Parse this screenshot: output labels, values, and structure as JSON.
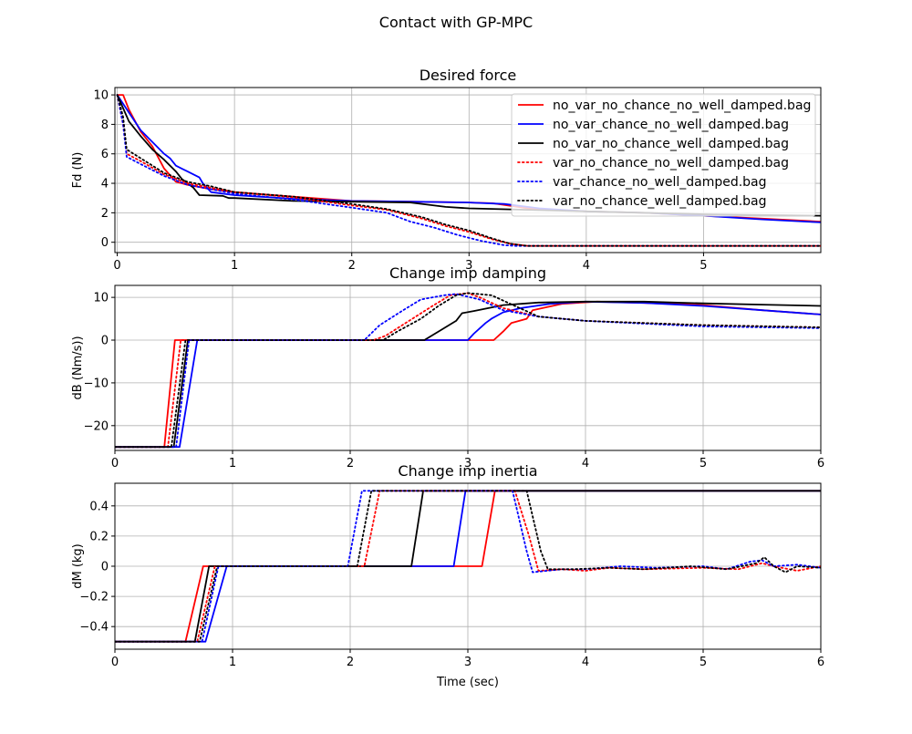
{
  "figure": {
    "suptitle": "Contact with GP-MPC",
    "xlabel": "Time (sec)"
  },
  "style": {
    "series_styles": [
      {
        "color": "#ff0000",
        "dash": "solid"
      },
      {
        "color": "#0000ff",
        "dash": "solid"
      },
      {
        "color": "#000000",
        "dash": "solid"
      },
      {
        "color": "#ff0000",
        "dash": "dotted"
      },
      {
        "color": "#0000ff",
        "dash": "dotted"
      },
      {
        "color": "#000000",
        "dash": "dotted"
      }
    ]
  },
  "chart_data": [
    {
      "type": "line",
      "title": "Desired force",
      "xlabel": "",
      "ylabel": "Fd (N)",
      "xlim": [
        -0.02,
        6.0
      ],
      "ylim": [
        -0.7,
        10.5
      ],
      "xticks": [
        0,
        1,
        2,
        3,
        4,
        5
      ],
      "yticks": [
        0,
        2,
        4,
        6,
        8,
        10
      ],
      "grid": true,
      "legend": "top-right",
      "series": [
        {
          "name": "no_var_no_chance_no_well_damped.bag",
          "x": [
            0,
            0.05,
            0.1,
            0.2,
            0.3,
            0.4,
            0.5,
            0.55,
            0.6,
            0.8,
            1,
            1.5,
            2,
            2.5,
            3,
            3.2,
            3.5,
            4,
            4.5,
            5,
            5.5,
            6
          ],
          "y": [
            10,
            10,
            9,
            7.5,
            6.5,
            5,
            4.1,
            4,
            3.9,
            3.6,
            3.4,
            3.1,
            2.8,
            2.75,
            2.7,
            2.65,
            2.3,
            2.1,
            2,
            1.8,
            1.6,
            1.4
          ]
        },
        {
          "name": "no_var_chance_no_well_damped.bag",
          "x": [
            0,
            0.1,
            0.2,
            0.3,
            0.4,
            0.45,
            0.5,
            0.55,
            0.6,
            0.7,
            0.73,
            0.8,
            1,
            1.5,
            2,
            2.5,
            3,
            3.3,
            3.6,
            4,
            4.5,
            5,
            5.5,
            6
          ],
          "y": [
            10,
            8.8,
            7.6,
            6.8,
            6,
            5.7,
            5.2,
            5,
            4.8,
            4.4,
            4,
            3.4,
            3.2,
            2.95,
            2.8,
            2.75,
            2.7,
            2.6,
            2.3,
            2.1,
            2,
            1.8,
            1.55,
            1.35
          ]
        },
        {
          "name": "no_var_no_chance_well_damped.bag",
          "x": [
            0,
            0.1,
            0.2,
            0.3,
            0.4,
            0.5,
            0.55,
            0.6,
            0.65,
            0.7,
            0.9,
            0.95,
            1,
            1.5,
            2,
            2.5,
            2.8,
            3,
            3.5,
            4,
            5,
            6
          ],
          "y": [
            10,
            8.2,
            7.2,
            6.3,
            5.6,
            4.8,
            4.3,
            4,
            3.7,
            3.2,
            3.15,
            3,
            3,
            2.8,
            2.75,
            2.7,
            2.4,
            2.3,
            2.2,
            2.1,
            1.9,
            1.8
          ]
        },
        {
          "name": "var_no_chance_no_well_damped.bag",
          "x": [
            0,
            0.05,
            0.08,
            0.2,
            0.4,
            0.6,
            0.8,
            1,
            1.5,
            2,
            2.3,
            2.6,
            2.8,
            3,
            3.2,
            3.35,
            3.5,
            4,
            5,
            6
          ],
          "y": [
            10,
            8,
            6,
            5.5,
            4.6,
            4,
            3.7,
            3.4,
            3.05,
            2.5,
            2.2,
            1.6,
            1.1,
            0.7,
            0.2,
            -0.1,
            -0.25,
            -0.25,
            -0.25,
            -0.25
          ]
        },
        {
          "name": "var_chance_no_well_damped.bag",
          "x": [
            0,
            0.05,
            0.08,
            0.2,
            0.4,
            0.6,
            0.8,
            1,
            1.5,
            2,
            2.3,
            2.5,
            2.7,
            2.9,
            3.1,
            3.3,
            3.4,
            3.5,
            4,
            5,
            6
          ],
          "y": [
            10,
            8,
            5.8,
            5.3,
            4.5,
            3.9,
            3.6,
            3.3,
            2.9,
            2.35,
            2,
            1.4,
            1,
            0.5,
            0.1,
            -0.2,
            -0.25,
            -0.25,
            -0.25,
            -0.25,
            -0.25
          ]
        },
        {
          "name": "var_no_chance_well_damped.bag",
          "x": [
            0,
            0.05,
            0.08,
            0.2,
            0.4,
            0.6,
            0.8,
            1,
            1.5,
            2,
            2.3,
            2.6,
            2.8,
            3,
            3.2,
            3.35,
            3.5,
            4,
            5,
            6
          ],
          "y": [
            10,
            8.5,
            6.3,
            5.7,
            4.7,
            4.1,
            3.8,
            3.4,
            3.1,
            2.6,
            2.25,
            1.7,
            1.2,
            0.8,
            0.25,
            -0.1,
            -0.25,
            -0.25,
            -0.25,
            -0.25
          ]
        }
      ]
    },
    {
      "type": "line",
      "title": "Change imp damping",
      "xlabel": "",
      "ylabel": "dB (Nm/s))",
      "xlim": [
        0,
        6
      ],
      "ylim": [
        -25.8,
        12.8
      ],
      "xticks": [
        0,
        1,
        2,
        3,
        4,
        5,
        6
      ],
      "yticks": [
        -20,
        -10,
        0,
        10
      ],
      "grid": true,
      "series": [
        {
          "name": "no_var_no_chance_no_well_damped.bag",
          "x": [
            0,
            0.42,
            0.51,
            3.22,
            3.3,
            3.37,
            3.5,
            3.55,
            3.8,
            4.1,
            4.5,
            5,
            5.5,
            6
          ],
          "y": [
            -25,
            -25,
            0,
            0,
            2,
            4,
            5,
            7,
            8.5,
            9,
            8.7,
            8.2,
            7,
            6
          ]
        },
        {
          "name": "no_var_chance_no_well_damped.bag",
          "x": [
            0,
            0.55,
            0.7,
            3,
            3.05,
            3.15,
            3.2,
            3.3,
            3.45,
            3.7,
            4,
            4.5,
            5,
            5.5,
            6
          ],
          "y": [
            -25,
            -25,
            0,
            0,
            1.5,
            4,
            5,
            6.5,
            7.5,
            8.5,
            9,
            8.7,
            8,
            7,
            6
          ]
        },
        {
          "name": "no_var_no_chance_well_damped.bag",
          "x": [
            0,
            0.5,
            0.62,
            2.63,
            2.75,
            2.9,
            2.95,
            3.05,
            3.3,
            3.6,
            4,
            4.5,
            5,
            5.5,
            6
          ],
          "y": [
            -25,
            -25,
            0,
            0,
            2,
            4.5,
            6.3,
            6.8,
            8.2,
            8.8,
            9,
            9,
            8.6,
            8.3,
            8
          ]
        },
        {
          "name": "var_no_chance_no_well_damped.bag",
          "x": [
            0,
            0.45,
            0.56,
            2.2,
            2.3,
            2.5,
            2.7,
            2.85,
            3,
            3.1,
            3.3,
            3.6,
            4,
            5,
            6
          ],
          "y": [
            -25,
            -25,
            0,
            0,
            1,
            4.5,
            8,
            10.5,
            11,
            10,
            7.5,
            5.5,
            4.5,
            3.5,
            3
          ]
        },
        {
          "name": "var_chance_no_well_damped.bag",
          "x": [
            0,
            0.52,
            0.63,
            2.12,
            2.25,
            2.45,
            2.6,
            2.8,
            2.9,
            3.1,
            3.3,
            3.6,
            4,
            5,
            6
          ],
          "y": [
            -25,
            -25,
            0,
            0,
            3.5,
            7,
            9.5,
            10.5,
            10.8,
            9.5,
            7,
            5.5,
            4.5,
            3.2,
            2.8
          ]
        },
        {
          "name": "var_no_chance_well_damped.bag",
          "x": [
            0,
            0.48,
            0.6,
            2.28,
            2.4,
            2.6,
            2.75,
            2.9,
            3,
            3.2,
            3.4,
            3.6,
            4,
            5,
            6
          ],
          "y": [
            -25,
            -25,
            0,
            0,
            2,
            5,
            8,
            10.5,
            11,
            10.5,
            8,
            5.5,
            4.5,
            3.5,
            3
          ]
        }
      ]
    },
    {
      "type": "line",
      "title": "Change imp inertia",
      "xlabel": "Time (sec)",
      "ylabel": "dM (kg)",
      "xlim": [
        0,
        6
      ],
      "ylim": [
        -0.55,
        0.55
      ],
      "xticks": [
        0,
        1,
        2,
        3,
        4,
        5,
        6
      ],
      "yticks": [
        -0.4,
        -0.2,
        0.0,
        0.2,
        0.4
      ],
      "grid": true,
      "series": [
        {
          "name": "no_var_no_chance_no_well_damped.bag",
          "x": [
            0,
            0.6,
            0.75,
            3.12,
            3.23,
            6
          ],
          "y": [
            -0.5,
            -0.5,
            0,
            0,
            0.5,
            0.5
          ]
        },
        {
          "name": "no_var_chance_no_well_damped.bag",
          "x": [
            0,
            0.77,
            0.95,
            2.88,
            2.98,
            6
          ],
          "y": [
            -0.5,
            -0.5,
            0,
            0,
            0.5,
            0.5
          ]
        },
        {
          "name": "no_var_no_chance_well_damped.bag",
          "x": [
            0,
            0.68,
            0.8,
            2.52,
            2.62,
            6
          ],
          "y": [
            -0.5,
            -0.5,
            0,
            0,
            0.5,
            0.5
          ]
        },
        {
          "name": "var_no_chance_no_well_damped.bag",
          "x": [
            0,
            0.7,
            0.85,
            2.12,
            2.25,
            3.4,
            3.52,
            3.6,
            3.8,
            4,
            4.2,
            4.5,
            5,
            5.3,
            5.5,
            5.6,
            5.8,
            6
          ],
          "y": [
            -0.5,
            -0.5,
            0,
            0,
            0.5,
            0.5,
            0.2,
            -0.03,
            -0.02,
            -0.03,
            -0.01,
            -0.02,
            -0.01,
            -0.02,
            0.02,
            0.0,
            -0.03,
            0.0
          ]
        },
        {
          "name": "var_chance_no_well_damped.bag",
          "x": [
            0,
            0.74,
            0.88,
            1.98,
            2.1,
            3.38,
            3.5,
            3.55,
            3.8,
            4,
            4.3,
            4.6,
            5,
            5.2,
            5.4,
            5.5,
            5.6,
            5.8,
            6
          ],
          "y": [
            -0.5,
            -0.5,
            0,
            0,
            0.5,
            0.5,
            0.1,
            -0.04,
            -0.02,
            -0.02,
            0.0,
            -0.01,
            0.0,
            -0.02,
            0.03,
            0.04,
            0.0,
            0.01,
            -0.01
          ]
        },
        {
          "name": "var_no_chance_well_damped.bag",
          "x": [
            0,
            0.72,
            0.87,
            2.06,
            2.18,
            3.5,
            3.62,
            3.68,
            3.9,
            4.2,
            4.5,
            4.9,
            5.2,
            5.45,
            5.52,
            5.6,
            5.7,
            5.8,
            6
          ],
          "y": [
            -0.5,
            -0.5,
            0,
            0,
            0.5,
            0.5,
            0.1,
            -0.02,
            -0.02,
            -0.01,
            -0.02,
            0.0,
            -0.02,
            0.02,
            0.06,
            0.0,
            -0.04,
            0.0,
            -0.01
          ]
        }
      ]
    }
  ]
}
